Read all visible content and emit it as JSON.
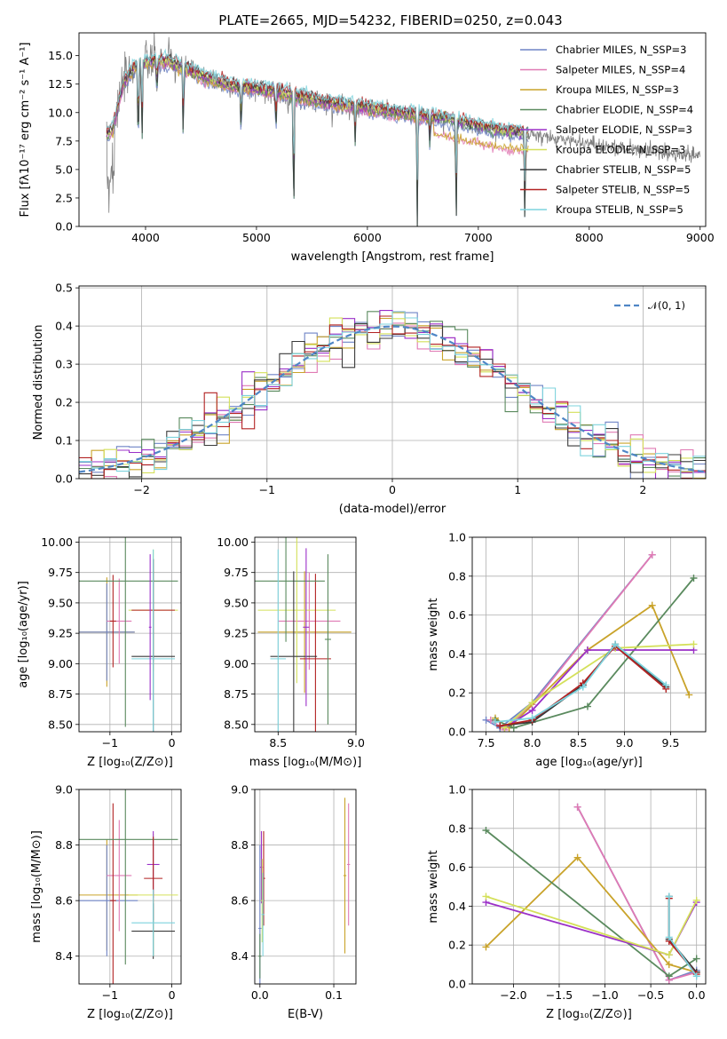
{
  "figure": {
    "title": "PLATE=2665, MJD=54232, FIBERID=0250, z=0.043"
  },
  "colors": {
    "data": "#808080",
    "grid": "#b0b0b0",
    "series": [
      "#6f84c6",
      "#e07ab4",
      "#c9a32a",
      "#5a8a5e",
      "#9b30c8",
      "#d4e05a",
      "#3a3a3a",
      "#b22222",
      "#7dd3dd"
    ]
  },
  "chart_data": [
    {
      "id": "spectrum",
      "type": "line",
      "xlabel": "wavelength [Angstrom, rest frame]",
      "ylabel": "Flux [fλ10⁻¹⁷ erg cm⁻² s⁻¹ A⁻¹]",
      "xlim": [
        3400,
        9050
      ],
      "ylim": [
        0,
        17
      ],
      "xticks": [
        "4000",
        "5000",
        "6000",
        "7000",
        "8000",
        "9000"
      ],
      "yticks": [
        "0.0",
        "2.5",
        "5.0",
        "7.5",
        "10.0",
        "12.5",
        "15.0"
      ],
      "grid": false,
      "legend_position": "upper right",
      "legend": [
        "Chabrier MILES, N_SSP=3",
        "Salpeter MILES, N_SSP=4",
        "Kroupa MILES, N_SSP=3",
        "Chabrier ELODIE, N_SSP=4",
        "Salpeter ELODIE, N_SSP=3",
        "Kroupa ELODIE, N_SSP=3",
        "Chabrier STELIB, N_SSP=5",
        "Salpeter STELIB, N_SSP=5",
        "Kroupa STELIB, N_SSP=5"
      ],
      "observed": {
        "x": [
          3650,
          3700,
          3800,
          3900,
          4000,
          4100,
          4200,
          4300,
          4400,
          4500,
          4600,
          4800,
          5000,
          5200,
          5400,
          5600,
          5800,
          6000,
          6200,
          6400,
          6600,
          6800,
          7000,
          7200,
          7400,
          7600,
          7800,
          8000,
          8200,
          8400,
          8600,
          8800,
          9000
        ],
        "y": [
          8.0,
          8.4,
          12.6,
          14.0,
          14.4,
          14.5,
          14.5,
          14.1,
          13.7,
          13.2,
          12.9,
          12.3,
          12.1,
          11.8,
          11.4,
          10.9,
          10.7,
          10.4,
          10.1,
          9.8,
          9.6,
          9.2,
          8.8,
          8.4,
          8.2,
          7.8,
          7.6,
          7.3,
          7.0,
          6.8,
          6.6,
          6.4,
          6.2
        ]
      },
      "model_range_x": [
        3650,
        7450
      ],
      "absorption_lines": [
        {
          "x": 3934,
          "depth": 0.55
        },
        {
          "x": 3968,
          "depth": 0.5
        },
        {
          "x": 4102,
          "depth": 0.2
        },
        {
          "x": 4340,
          "depth": 0.45
        },
        {
          "x": 4861,
          "depth": 0.35
        },
        {
          "x": 5175,
          "depth": 0.3
        },
        {
          "x": 5335,
          "depth": 1.0
        },
        {
          "x": 5890,
          "depth": 0.3
        },
        {
          "x": 6450,
          "depth": 1.0
        },
        {
          "x": 6563,
          "depth": 0.25
        },
        {
          "x": 6800,
          "depth": 1.0
        },
        {
          "x": 7420,
          "depth": 1.0
        }
      ]
    },
    {
      "id": "residuals",
      "type": "line",
      "xlabel": "(data-model)/error",
      "ylabel": "Normed distribution",
      "xlim": [
        -2.5,
        2.5
      ],
      "ylim": [
        0,
        0.505
      ],
      "xticks": [
        "−2",
        "−1",
        "0",
        "1",
        "2"
      ],
      "yticks": [
        "0.0",
        "0.1",
        "0.2",
        "0.3",
        "0.4",
        "0.5"
      ],
      "grid": true,
      "legend_position": "upper right",
      "gaussian_label": "𝒩(0, 1)"
    },
    {
      "id": "age-vs-Z",
      "type": "scatter",
      "xlabel": "Z [log₁₀(Z/Z⊙)]",
      "ylabel": "age  [log₁₀(age/yr)]",
      "xlim": [
        -1.5,
        0.15
      ],
      "ylim": [
        8.44,
        10.04
      ],
      "xticks": [
        "−1",
        "0"
      ],
      "yticks": [
        "8.50",
        "8.75",
        "9.00",
        "9.25",
        "9.50",
        "9.75",
        "10.00"
      ],
      "grid": true
    },
    {
      "id": "age-vs-mass",
      "type": "scatter",
      "xlabel": "mass [log₁₀(M/M⊙)]",
      "ylabel": "",
      "xlim": [
        8.35,
        9.0
      ],
      "ylim": [
        8.44,
        10.04
      ],
      "xticks": [
        "8.5",
        "9.0"
      ],
      "yticks": [
        "8.50",
        "8.75",
        "9.00",
        "9.25",
        "9.50",
        "9.75",
        "10.00"
      ],
      "grid": true
    },
    {
      "id": "weight-vs-age",
      "type": "line",
      "xlabel": "age  [log₁₀(age/yr)]",
      "ylabel": "mass weight",
      "xlim": [
        7.35,
        9.88
      ],
      "ylim": [
        0,
        1.0
      ],
      "xticks": [
        "7.5",
        "8.0",
        "8.5",
        "9.0",
        "9.5"
      ],
      "yticks": [
        "0.0",
        "0.2",
        "0.4",
        "0.6",
        "0.8",
        "1.0"
      ],
      "grid": true,
      "series": [
        {
          "x": [
            7.5,
            7.65,
            8.0,
            9.3
          ],
          "y": [
            0.06,
            0.02,
            0.15,
            0.91
          ]
        },
        {
          "x": [
            7.55,
            7.7,
            8.0,
            9.3
          ],
          "y": [
            0.06,
            0.01,
            0.14,
            0.91
          ]
        },
        {
          "x": [
            7.6,
            7.75,
            8.6,
            9.3,
            9.7
          ],
          "y": [
            0.07,
            0.02,
            0.42,
            0.65,
            0.19
          ]
        },
        {
          "x": [
            7.6,
            7.8,
            8.6,
            9.75
          ],
          "y": [
            0.06,
            0.02,
            0.13,
            0.79
          ]
        },
        {
          "x": [
            7.7,
            8.0,
            8.6,
            9.75
          ],
          "y": [
            0.02,
            0.11,
            0.42,
            0.42
          ]
        },
        {
          "x": [
            7.7,
            8.0,
            8.9,
            9.75
          ],
          "y": [
            0.02,
            0.15,
            0.43,
            0.45
          ]
        },
        {
          "x": [
            7.65,
            8.0,
            8.55,
            8.9,
            9.45
          ],
          "y": [
            0.03,
            0.05,
            0.24,
            0.45,
            0.23
          ]
        },
        {
          "x": [
            7.65,
            8.0,
            8.55,
            8.9,
            9.45
          ],
          "y": [
            0.03,
            0.06,
            0.25,
            0.44,
            0.22
          ]
        },
        {
          "x": [
            7.6,
            8.0,
            8.55,
            8.9,
            9.45
          ],
          "y": [
            0.05,
            0.07,
            0.23,
            0.45,
            0.24
          ]
        }
      ]
    },
    {
      "id": "mass-vs-Z",
      "type": "scatter",
      "xlabel": "Z [log₁₀(Z/Z⊙)]",
      "ylabel": "mass [log₁₀(M/M⊙)]",
      "xlim": [
        -1.5,
        0.15
      ],
      "ylim": [
        8.3,
        9.0
      ],
      "xticks": [
        "−1",
        "0"
      ],
      "yticks": [
        "8.4",
        "8.6",
        "8.8",
        "9.0"
      ],
      "grid": true
    },
    {
      "id": "mass-vs-EBV",
      "type": "scatter",
      "xlabel": "E(B-V)",
      "ylabel": "",
      "xlim": [
        -0.007,
        0.13
      ],
      "ylim": [
        8.3,
        9.0
      ],
      "xticks": [
        "0.0",
        "0.1"
      ],
      "yticks": [
        "8.4",
        "8.6",
        "8.8",
        "9.0"
      ],
      "grid": true
    },
    {
      "id": "weight-vs-Z",
      "type": "line",
      "xlabel": "Z [log₁₀(Z/Z⊙)]",
      "ylabel": "mass weight",
      "xlim": [
        -2.45,
        0.1
      ],
      "ylim": [
        0,
        1.0
      ],
      "xticks": [
        "−2.0",
        "−1.5",
        "−1.0",
        "−0.5",
        "0.0"
      ],
      "yticks": [
        "0.0",
        "0.2",
        "0.4",
        "0.6",
        "0.8",
        "1.0"
      ],
      "grid": true,
      "series": [
        {
          "x": [
            -1.3,
            -0.3,
            0.0
          ],
          "y": [
            0.91,
            0.02,
            0.07
          ]
        },
        {
          "x": [
            -1.3,
            -0.3,
            0.0
          ],
          "y": [
            0.91,
            0.02,
            0.06
          ]
        },
        {
          "x": [
            -2.3,
            -1.3,
            -0.3,
            0.0
          ],
          "y": [
            0.19,
            0.65,
            0.1,
            0.06
          ]
        },
        {
          "x": [
            -2.3,
            -0.3,
            0.0
          ],
          "y": [
            0.79,
            0.04,
            0.13
          ]
        },
        {
          "x": [
            -2.3,
            -0.3,
            0.0
          ],
          "y": [
            0.42,
            0.15,
            0.42
          ]
        },
        {
          "x": [
            -2.3,
            -0.3,
            0.0
          ],
          "y": [
            0.45,
            0.15,
            0.43
          ]
        },
        {
          "x": [
            -0.3,
            -0.3,
            0.0
          ],
          "y": [
            0.45,
            0.23,
            0.06
          ]
        },
        {
          "x": [
            -0.3,
            -0.3,
            0.0
          ],
          "y": [
            0.44,
            0.22,
            0.05
          ]
        },
        {
          "x": [
            -0.3,
            -0.3,
            0.0
          ],
          "y": [
            0.45,
            0.24,
            0.04
          ]
        }
      ]
    }
  ]
}
